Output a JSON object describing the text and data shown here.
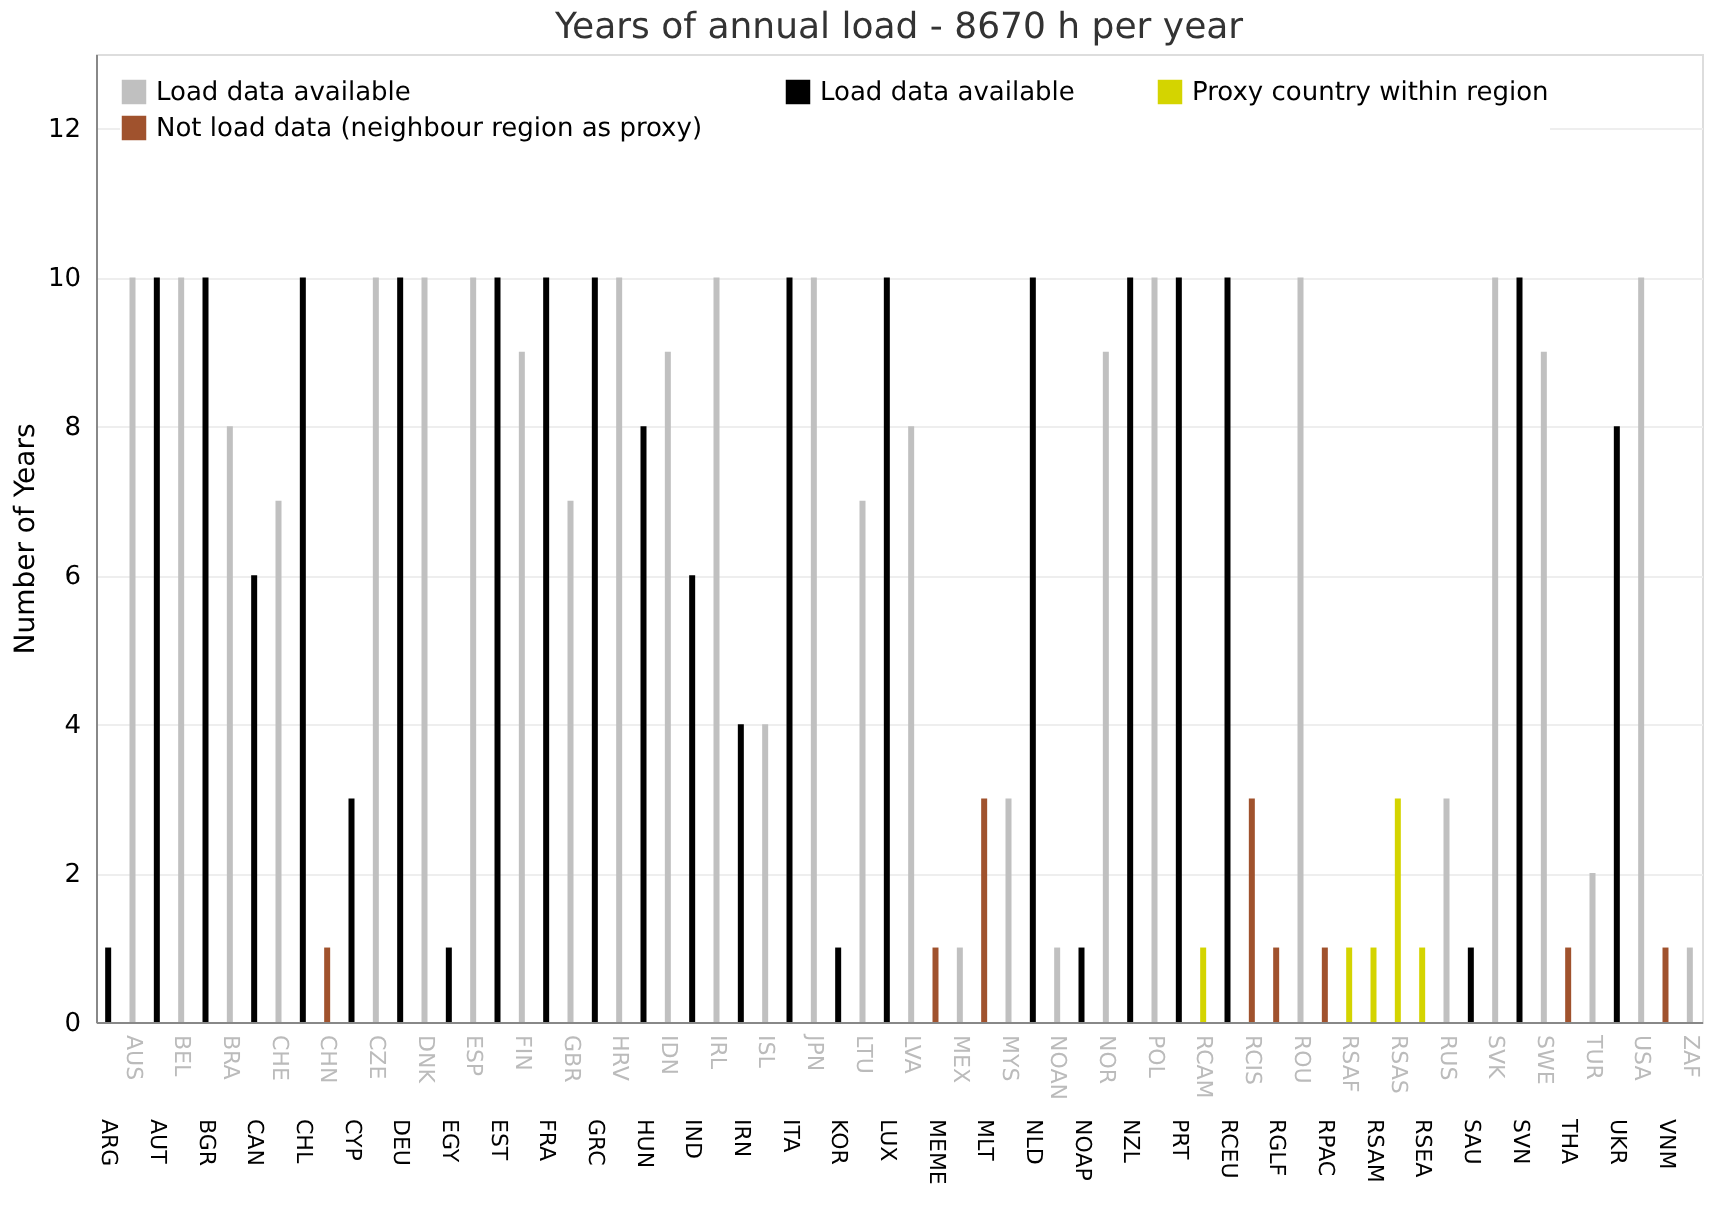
{
  "chart_data": {
    "type": "bar",
    "title": "Years of annual load  - 8670 h per year",
    "ylabel": "Number of Years",
    "categories": [
      "ARG",
      "AUS",
      "AUT",
      "BEL",
      "BGR",
      "BRA",
      "CAN",
      "CHE",
      "CHL",
      "CHN",
      "CYP",
      "CZE",
      "DEU",
      "DNK",
      "EGY",
      "ESP",
      "EST",
      "FIN",
      "FRA",
      "GBR",
      "GRC",
      "HRV",
      "HUN",
      "IDN",
      "IND",
      "IRL",
      "IRN",
      "ISL",
      "ITA",
      "JPN",
      "KOR",
      "LTU",
      "LUX",
      "LVA",
      "MEME",
      "MEX",
      "MLT",
      "MYS",
      "NLD",
      "NOAN",
      "NOAP",
      "NOR",
      "NZL",
      "POL",
      "PRT",
      "RCAM",
      "RCEU",
      "RCIS",
      "RGLF",
      "ROU",
      "RPAC",
      "RSAF",
      "RSAM",
      "RSAS",
      "RSEA",
      "RUS",
      "SAU",
      "SVK",
      "SVN",
      "SWE",
      "THA",
      "TUR",
      "UKR",
      "USA",
      "VNM",
      "ZAF"
    ],
    "series": [
      {
        "name": "Load data available",
        "color": "#c0c0c0",
        "values": [
          null,
          10,
          null,
          10,
          null,
          8,
          null,
          7,
          null,
          null,
          null,
          10,
          null,
          10,
          null,
          10,
          null,
          9,
          null,
          7,
          null,
          10,
          null,
          9,
          null,
          10,
          null,
          4,
          null,
          10,
          null,
          7,
          null,
          8,
          null,
          1,
          null,
          3,
          null,
          1,
          null,
          9,
          null,
          10,
          null,
          null,
          null,
          null,
          null,
          10,
          null,
          null,
          null,
          null,
          null,
          3,
          null,
          10,
          null,
          9,
          null,
          2,
          null,
          10,
          null,
          1
        ]
      },
      {
        "name": "Load data available",
        "color": "#000000",
        "values": [
          1,
          null,
          10,
          null,
          10,
          null,
          6,
          null,
          10,
          null,
          3,
          null,
          10,
          null,
          1,
          null,
          10,
          null,
          10,
          null,
          10,
          null,
          8,
          null,
          6,
          null,
          4,
          null,
          10,
          null,
          1,
          null,
          10,
          null,
          null,
          null,
          null,
          null,
          10,
          null,
          1,
          null,
          10,
          null,
          10,
          null,
          10,
          null,
          null,
          null,
          null,
          null,
          null,
          null,
          null,
          null,
          1,
          null,
          10,
          null,
          null,
          null,
          8,
          null,
          null,
          null
        ]
      },
      {
        "name": "Proxy country within region",
        "color": "#d4d400",
        "values": [
          null,
          null,
          null,
          null,
          null,
          null,
          null,
          null,
          null,
          null,
          null,
          null,
          null,
          null,
          null,
          null,
          null,
          null,
          null,
          null,
          null,
          null,
          null,
          null,
          null,
          null,
          null,
          null,
          null,
          null,
          null,
          null,
          null,
          null,
          null,
          null,
          null,
          null,
          null,
          null,
          null,
          null,
          null,
          null,
          null,
          1,
          null,
          null,
          null,
          null,
          null,
          1,
          1,
          3,
          1,
          null,
          null,
          null,
          null,
          null,
          null,
          null,
          null,
          null,
          null,
          null
        ]
      },
      {
        "name": "Not load data (neighbour region as proxy)",
        "color": "#a0522d",
        "values": [
          null,
          null,
          null,
          null,
          null,
          null,
          null,
          null,
          null,
          1,
          null,
          null,
          null,
          null,
          null,
          null,
          null,
          null,
          null,
          null,
          null,
          null,
          null,
          null,
          null,
          null,
          null,
          null,
          null,
          null,
          null,
          null,
          null,
          null,
          1,
          null,
          3,
          null,
          null,
          null,
          null,
          null,
          null,
          null,
          null,
          null,
          null,
          3,
          1,
          null,
          1,
          null,
          null,
          null,
          null,
          null,
          null,
          null,
          null,
          null,
          1,
          null,
          null,
          null,
          1,
          null
        ]
      }
    ],
    "ylim": [
      0,
      13
    ],
    "yticks": [
      0,
      2,
      4,
      6,
      8,
      10,
      12
    ],
    "grid": "y",
    "legend": "top left"
  }
}
